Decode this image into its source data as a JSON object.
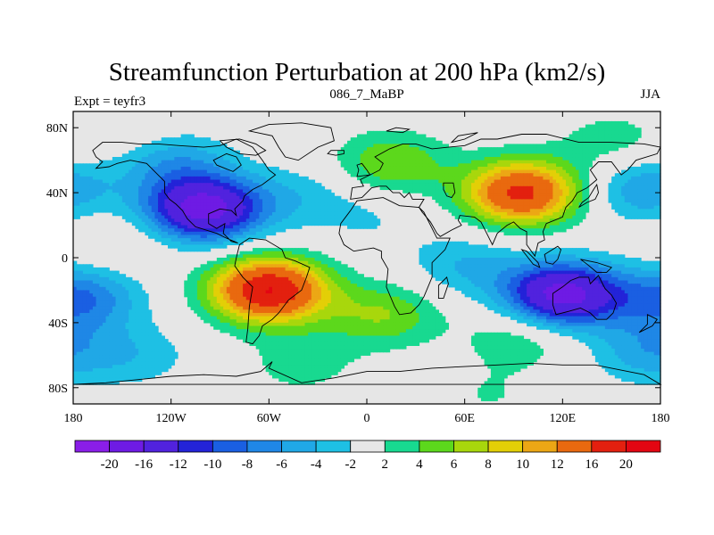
{
  "chart_data": {
    "type": "heatmap",
    "title": "Streamfunction Perturbation at 200 hPa (km2/s)",
    "subtitle_left": "Expt = teyfr3",
    "subtitle_center": "086_7_MaBP",
    "subtitle_right": "JJA",
    "x_ticks": [
      {
        "value": -180,
        "label": "180"
      },
      {
        "value": -120,
        "label": "120W"
      },
      {
        "value": -60,
        "label": "60W"
      },
      {
        "value": 0,
        "label": "0"
      },
      {
        "value": 60,
        "label": "60E"
      },
      {
        "value": 120,
        "label": "120E"
      },
      {
        "value": 180,
        "label": "180"
      }
    ],
    "y_ticks": [
      {
        "value": 80,
        "label": "80N"
      },
      {
        "value": 40,
        "label": "40N"
      },
      {
        "value": 0,
        "label": "0"
      },
      {
        "value": -40,
        "label": "40S"
      },
      {
        "value": -80,
        "label": "80S"
      }
    ],
    "xlim": [
      -180,
      180
    ],
    "ylim": [
      -90,
      90
    ],
    "colorbar": {
      "levels": [
        -20,
        -16,
        -12,
        -10,
        -8,
        -6,
        -4,
        -2,
        2,
        4,
        6,
        8,
        10,
        12,
        16,
        20
      ],
      "labels": [
        "-20",
        "-16",
        "-12",
        "-10",
        "-8",
        "-6",
        "-4",
        "-2",
        "2",
        "4",
        "6",
        "8",
        "10",
        "12",
        "16",
        "20"
      ],
      "colors": [
        "#8a1ee8",
        "#6e1be4",
        "#5122de",
        "#2323d8",
        "#1a5fe2",
        "#1f87e6",
        "#20a8e6",
        "#1ec0e4",
        "#e6e6e6",
        "#18d990",
        "#5cd81c",
        "#a8d70c",
        "#e3cf07",
        "#eca715",
        "#e9690f",
        "#e3200f",
        "#e30612"
      ]
    },
    "anomaly_centers": [
      {
        "lon": -100,
        "lat": 30,
        "value": -18
      },
      {
        "lon": -175,
        "lat": -25,
        "value": -8
      },
      {
        "lon": -120,
        "lat": 60,
        "value": -6
      },
      {
        "lon": -40,
        "lat": 38,
        "value": -3
      },
      {
        "lon": 60,
        "lat": -5,
        "value": -4
      },
      {
        "lon": 120,
        "lat": -23,
        "value": -18
      },
      {
        "lon": 170,
        "lat": 42,
        "value": -6
      },
      {
        "lon": 172,
        "lat": -58,
        "value": -5
      },
      {
        "lon": -140,
        "lat": -60,
        "value": -3
      },
      {
        "lon": 5,
        "lat": 25,
        "value": -2
      },
      {
        "lon": 95,
        "lat": 40,
        "value": 17
      },
      {
        "lon": 15,
        "lat": 58,
        "value": 6
      },
      {
        "lon": 150,
        "lat": 72,
        "value": 3
      },
      {
        "lon": -60,
        "lat": -20,
        "value": 20
      },
      {
        "lon": 10,
        "lat": -35,
        "value": 6
      },
      {
        "lon": -40,
        "lat": -65,
        "value": 3
      },
      {
        "lon": 95,
        "lat": -48,
        "value": 4
      },
      {
        "lon": -150,
        "lat": 10,
        "value": 2
      },
      {
        "lon": -135,
        "lat": 72,
        "value": 2
      },
      {
        "lon": 75,
        "lat": -85,
        "value": 2
      }
    ]
  }
}
